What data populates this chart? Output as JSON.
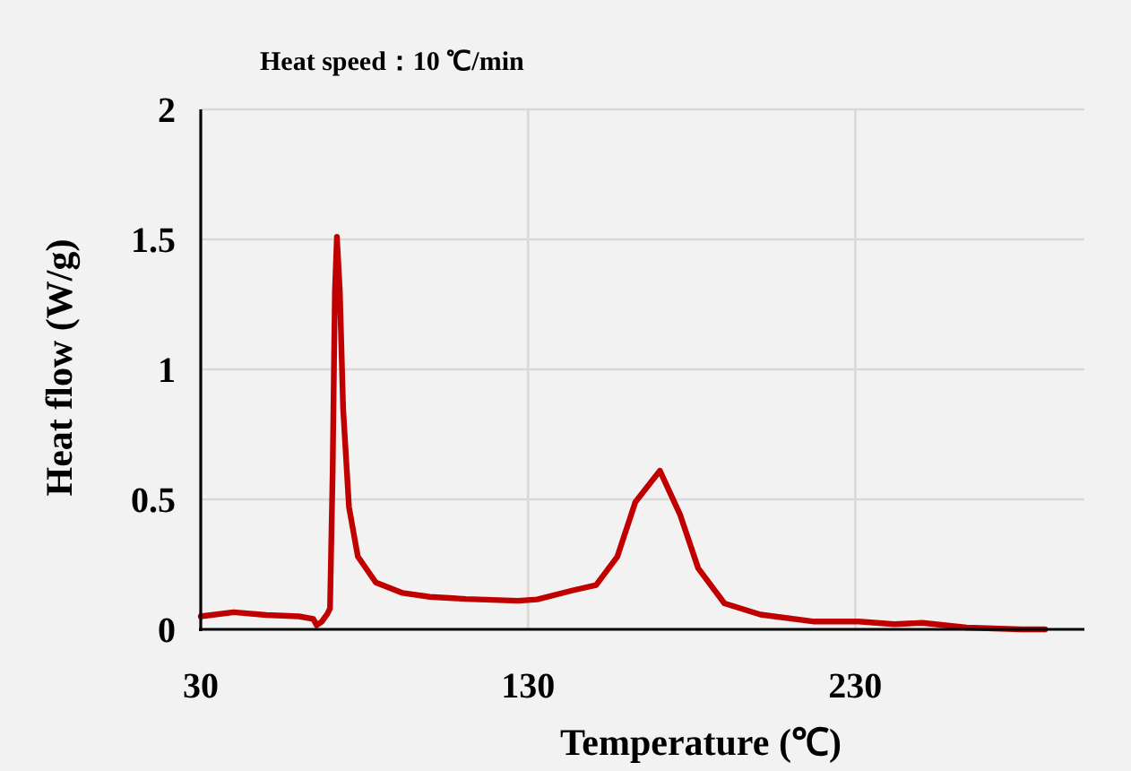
{
  "chart_data": {
    "type": "line",
    "title": "Heat speed：10 ℃/min",
    "xlabel": "Temperature (℃)",
    "ylabel": "Heat flow (W/g)",
    "xlim": [
      30,
      300
    ],
    "ylim": [
      0,
      2
    ],
    "xticks": [
      30,
      130,
      230
    ],
    "yticks": [
      0,
      0.5,
      1,
      1.5,
      2
    ],
    "grid": true,
    "marker": "none",
    "line_style": "solid",
    "series": [
      {
        "color": "#c00000",
        "x": [
          30,
          40,
          50,
          60,
          64.4,
          65.4,
          67,
          68.7,
          69.5,
          70.3,
          71,
          71.6,
          72.5,
          73.5,
          75.3,
          78,
          83.5,
          91.7,
          100,
          111,
          127,
          132.8,
          143.7,
          150.8,
          157.3,
          162.8,
          170.3,
          176.5,
          182,
          190,
          201,
          217.5,
          231,
          242,
          250.5,
          264,
          280.7,
          288
        ],
        "values": [
          0.05,
          0.066,
          0.055,
          0.05,
          0.04,
          0.016,
          0.03,
          0.06,
          0.08,
          0.6,
          1.3,
          1.51,
          1.3,
          0.85,
          0.47,
          0.28,
          0.18,
          0.14,
          0.125,
          0.117,
          0.11,
          0.115,
          0.15,
          0.17,
          0.28,
          0.49,
          0.61,
          0.44,
          0.235,
          0.1,
          0.057,
          0.03,
          0.03,
          0.02,
          0.025,
          0.007,
          0,
          0
        ]
      }
    ]
  }
}
